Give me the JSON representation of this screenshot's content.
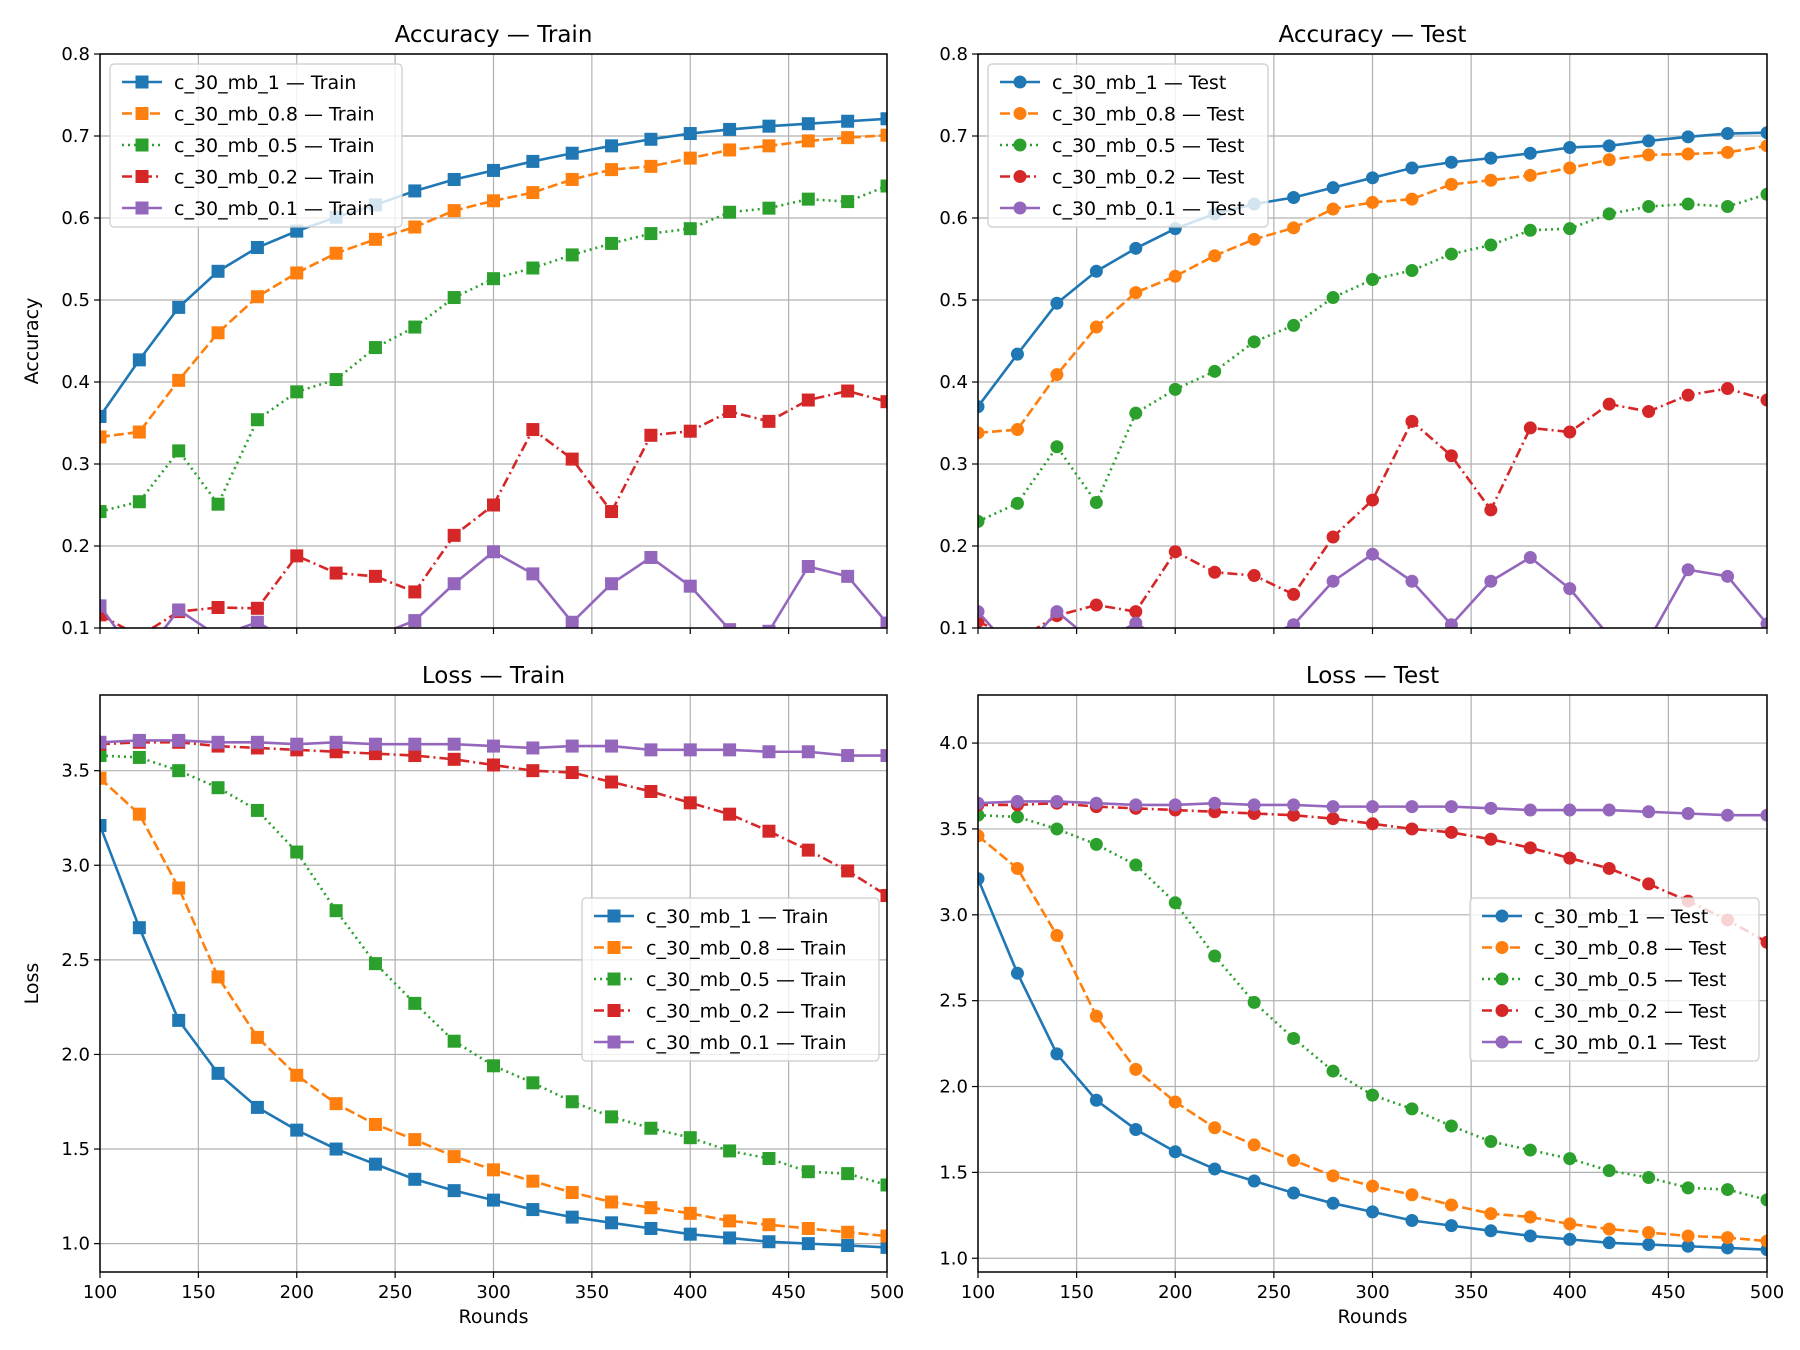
{
  "figure": {
    "background": "#ffffff"
  },
  "chart_data": [
    {
      "id": "acc-train",
      "type": "line",
      "title": "Accuracy — Train",
      "xlabel": "",
      "ylabel": "Accuracy",
      "xlim": [
        100,
        500
      ],
      "ylim": [
        0.1,
        0.8
      ],
      "xticks": [
        100,
        150,
        200,
        250,
        300,
        350,
        400,
        450,
        500
      ],
      "yticks": [
        0.1,
        0.2,
        0.3,
        0.4,
        0.5,
        0.6,
        0.7,
        0.8
      ],
      "ytick_labels": [
        "0.1",
        "0.2",
        "0.3",
        "0.4",
        "0.5",
        "0.6",
        "0.7",
        "0.8"
      ],
      "show_xtick_labels": false,
      "grid": true,
      "legend": "upper-left",
      "marker": "square",
      "x": [
        100,
        120,
        140,
        160,
        180,
        200,
        220,
        240,
        260,
        280,
        300,
        320,
        340,
        360,
        380,
        400,
        420,
        440,
        460,
        480,
        500
      ],
      "series": [
        {
          "name": "c_30_mb_1 — Train",
          "color": "#1f77b4",
          "dash": "solid",
          "values": [
            0.358,
            0.427,
            0.491,
            0.535,
            0.564,
            0.584,
            0.601,
            0.616,
            0.633,
            0.647,
            0.658,
            0.669,
            0.679,
            0.688,
            0.696,
            0.703,
            0.708,
            0.712,
            0.715,
            0.718,
            0.721
          ]
        },
        {
          "name": "c_30_mb_0.8 — Train",
          "color": "#ff7f0e",
          "dash": "dashed",
          "values": [
            0.333,
            0.339,
            0.402,
            0.46,
            0.504,
            0.533,
            0.557,
            0.574,
            0.589,
            0.609,
            0.621,
            0.631,
            0.647,
            0.659,
            0.663,
            0.673,
            0.683,
            0.688,
            0.694,
            0.698,
            0.701
          ]
        },
        {
          "name": "c_30_mb_0.5 — Train",
          "color": "#2ca02c",
          "dash": "dotted",
          "values": [
            0.242,
            0.254,
            0.316,
            0.251,
            0.354,
            0.388,
            0.403,
            0.442,
            0.467,
            0.503,
            0.526,
            0.539,
            0.555,
            0.569,
            0.581,
            0.587,
            0.607,
            0.612,
            0.623,
            0.62,
            0.639
          ]
        },
        {
          "name": "c_30_mb_0.2 — Train",
          "color": "#d62728",
          "dash": "dashdot",
          "values": [
            0.116,
            0.09,
            0.12,
            0.125,
            0.124,
            0.188,
            0.167,
            0.163,
            0.144,
            0.213,
            0.25,
            0.342,
            0.306,
            0.242,
            0.335,
            0.34,
            0.364,
            0.352,
            0.378,
            0.389,
            0.376
          ]
        },
        {
          "name": "c_30_mb_0.1 — Train",
          "color": "#9467bd",
          "dash": "solid",
          "values": [
            0.127,
            0.06,
            0.122,
            0.09,
            0.107,
            0.08,
            0.085,
            0.09,
            0.109,
            0.154,
            0.193,
            0.166,
            0.107,
            0.154,
            0.186,
            0.151,
            0.098,
            0.096,
            0.175,
            0.163,
            0.106
          ]
        }
      ]
    },
    {
      "id": "acc-test",
      "type": "line",
      "title": "Accuracy — Test",
      "xlabel": "",
      "ylabel": "",
      "xlim": [
        100,
        500
      ],
      "ylim": [
        0.1,
        0.8
      ],
      "xticks": [
        100,
        150,
        200,
        250,
        300,
        350,
        400,
        450,
        500
      ],
      "yticks": [
        0.1,
        0.2,
        0.3,
        0.4,
        0.5,
        0.6,
        0.7,
        0.8
      ],
      "ytick_labels": [
        "0.1",
        "0.2",
        "0.3",
        "0.4",
        "0.5",
        "0.6",
        "0.7",
        "0.8"
      ],
      "show_xtick_labels": false,
      "grid": true,
      "legend": "upper-left",
      "marker": "circle",
      "x": [
        100,
        120,
        140,
        160,
        180,
        200,
        220,
        240,
        260,
        280,
        300,
        320,
        340,
        360,
        380,
        400,
        420,
        440,
        460,
        480,
        500
      ],
      "series": [
        {
          "name": "c_30_mb_1 — Test",
          "color": "#1f77b4",
          "dash": "solid",
          "values": [
            0.37,
            0.434,
            0.496,
            0.535,
            0.563,
            0.587,
            0.605,
            0.617,
            0.625,
            0.637,
            0.649,
            0.661,
            0.668,
            0.673,
            0.679,
            0.686,
            0.688,
            0.694,
            0.699,
            0.703,
            0.704
          ]
        },
        {
          "name": "c_30_mb_0.8 — Test",
          "color": "#ff7f0e",
          "dash": "dashed",
          "values": [
            0.338,
            0.342,
            0.409,
            0.467,
            0.509,
            0.529,
            0.554,
            0.574,
            0.588,
            0.611,
            0.619,
            0.623,
            0.641,
            0.646,
            0.652,
            0.661,
            0.671,
            0.677,
            0.678,
            0.68,
            0.688
          ]
        },
        {
          "name": "c_30_mb_0.5 — Test",
          "color": "#2ca02c",
          "dash": "dotted",
          "values": [
            0.23,
            0.252,
            0.321,
            0.253,
            0.362,
            0.391,
            0.413,
            0.449,
            0.469,
            0.503,
            0.525,
            0.536,
            0.556,
            0.567,
            0.585,
            0.587,
            0.605,
            0.614,
            0.617,
            0.614,
            0.629
          ]
        },
        {
          "name": "c_30_mb_0.2 — Test",
          "color": "#d62728",
          "dash": "dashdot",
          "values": [
            0.108,
            0.085,
            0.115,
            0.128,
            0.12,
            0.193,
            0.168,
            0.164,
            0.141,
            0.211,
            0.256,
            0.352,
            0.31,
            0.244,
            0.344,
            0.339,
            0.373,
            0.364,
            0.384,
            0.392,
            0.378
          ]
        },
        {
          "name": "c_30_mb_0.1 — Test",
          "color": "#9467bd",
          "dash": "solid",
          "values": [
            0.12,
            0.065,
            0.12,
            0.08,
            0.106,
            0.075,
            0.08,
            0.085,
            0.104,
            0.157,
            0.19,
            0.157,
            0.104,
            0.157,
            0.186,
            0.148,
            0.09,
            0.085,
            0.171,
            0.163,
            0.105
          ]
        }
      ]
    },
    {
      "id": "loss-train",
      "type": "line",
      "title": "Loss — Train",
      "xlabel": "Rounds",
      "ylabel": "Loss",
      "xlim": [
        100,
        500
      ],
      "ylim": [
        0.85,
        3.9
      ],
      "xticks": [
        100,
        150,
        200,
        250,
        300,
        350,
        400,
        450,
        500
      ],
      "yticks": [
        1.0,
        1.5,
        2.0,
        2.5,
        3.0,
        3.5
      ],
      "ytick_labels": [
        "1.0",
        "1.5",
        "2.0",
        "2.5",
        "3.0",
        "3.5"
      ],
      "show_xtick_labels": true,
      "grid": true,
      "legend": "center-right",
      "marker": "square",
      "x": [
        100,
        120,
        140,
        160,
        180,
        200,
        220,
        240,
        260,
        280,
        300,
        320,
        340,
        360,
        380,
        400,
        420,
        440,
        460,
        480,
        500
      ],
      "series": [
        {
          "name": "c_30_mb_1 — Train",
          "color": "#1f77b4",
          "dash": "solid",
          "values": [
            3.21,
            2.67,
            2.18,
            1.9,
            1.72,
            1.6,
            1.5,
            1.42,
            1.34,
            1.28,
            1.23,
            1.18,
            1.14,
            1.11,
            1.08,
            1.05,
            1.03,
            1.01,
            1.0,
            0.99,
            0.98
          ]
        },
        {
          "name": "c_30_mb_0.8 — Train",
          "color": "#ff7f0e",
          "dash": "dashed",
          "values": [
            3.46,
            3.27,
            2.88,
            2.41,
            2.09,
            1.89,
            1.74,
            1.63,
            1.55,
            1.46,
            1.39,
            1.33,
            1.27,
            1.22,
            1.19,
            1.16,
            1.12,
            1.1,
            1.08,
            1.06,
            1.04
          ]
        },
        {
          "name": "c_30_mb_0.5 — Train",
          "color": "#2ca02c",
          "dash": "dotted",
          "values": [
            3.58,
            3.57,
            3.5,
            3.41,
            3.29,
            3.07,
            2.76,
            2.48,
            2.27,
            2.07,
            1.94,
            1.85,
            1.75,
            1.67,
            1.61,
            1.56,
            1.49,
            1.45,
            1.38,
            1.37,
            1.31
          ]
        },
        {
          "name": "c_30_mb_0.2 — Train",
          "color": "#d62728",
          "dash": "dashdot",
          "values": [
            3.64,
            3.65,
            3.65,
            3.63,
            3.62,
            3.61,
            3.6,
            3.59,
            3.58,
            3.56,
            3.53,
            3.5,
            3.49,
            3.44,
            3.39,
            3.33,
            3.27,
            3.18,
            3.08,
            2.97,
            2.84
          ]
        },
        {
          "name": "c_30_mb_0.1 — Train",
          "color": "#9467bd",
          "dash": "solid",
          "values": [
            3.65,
            3.66,
            3.66,
            3.65,
            3.65,
            3.64,
            3.65,
            3.64,
            3.64,
            3.64,
            3.63,
            3.62,
            3.63,
            3.63,
            3.61,
            3.61,
            3.61,
            3.6,
            3.6,
            3.58,
            3.58
          ]
        }
      ]
    },
    {
      "id": "loss-test",
      "type": "line",
      "title": "Loss — Test",
      "xlabel": "Rounds",
      "ylabel": "",
      "xlim": [
        100,
        500
      ],
      "ylim": [
        0.92,
        4.28
      ],
      "xticks": [
        100,
        150,
        200,
        250,
        300,
        350,
        400,
        450,
        500
      ],
      "yticks": [
        1.0,
        1.5,
        2.0,
        2.5,
        3.0,
        3.5,
        4.0
      ],
      "ytick_labels": [
        "1.0",
        "1.5",
        "2.0",
        "2.5",
        "3.0",
        "3.5",
        "4.0"
      ],
      "show_xtick_labels": true,
      "grid": true,
      "legend": "center-right",
      "marker": "circle",
      "x": [
        100,
        120,
        140,
        160,
        180,
        200,
        220,
        240,
        260,
        280,
        300,
        320,
        340,
        360,
        380,
        400,
        420,
        440,
        460,
        480,
        500
      ],
      "series": [
        {
          "name": "c_30_mb_1 — Test",
          "color": "#1f77b4",
          "dash": "solid",
          "values": [
            3.21,
            2.66,
            2.19,
            1.92,
            1.75,
            1.62,
            1.52,
            1.45,
            1.38,
            1.32,
            1.27,
            1.22,
            1.19,
            1.16,
            1.13,
            1.11,
            1.09,
            1.08,
            1.07,
            1.06,
            1.05
          ]
        },
        {
          "name": "c_30_mb_0.8 — Test",
          "color": "#ff7f0e",
          "dash": "dashed",
          "values": [
            3.46,
            3.27,
            2.88,
            2.41,
            2.1,
            1.91,
            1.76,
            1.66,
            1.57,
            1.48,
            1.42,
            1.37,
            1.31,
            1.26,
            1.24,
            1.2,
            1.17,
            1.15,
            1.13,
            1.12,
            1.1
          ]
        },
        {
          "name": "c_30_mb_0.5 — Test",
          "color": "#2ca02c",
          "dash": "dotted",
          "values": [
            3.58,
            3.57,
            3.5,
            3.41,
            3.29,
            3.07,
            2.76,
            2.49,
            2.28,
            2.09,
            1.95,
            1.87,
            1.77,
            1.68,
            1.63,
            1.58,
            1.51,
            1.47,
            1.41,
            1.4,
            1.34
          ]
        },
        {
          "name": "c_30_mb_0.2 — Test",
          "color": "#d62728",
          "dash": "dashdot",
          "values": [
            3.64,
            3.64,
            3.65,
            3.63,
            3.62,
            3.61,
            3.6,
            3.59,
            3.58,
            3.56,
            3.53,
            3.5,
            3.48,
            3.44,
            3.39,
            3.33,
            3.27,
            3.18,
            3.08,
            2.97,
            2.84
          ]
        },
        {
          "name": "c_30_mb_0.1 — Test",
          "color": "#9467bd",
          "dash": "solid",
          "values": [
            3.65,
            3.66,
            3.66,
            3.65,
            3.64,
            3.64,
            3.65,
            3.64,
            3.64,
            3.63,
            3.63,
            3.63,
            3.63,
            3.62,
            3.61,
            3.61,
            3.61,
            3.6,
            3.59,
            3.58,
            3.58
          ]
        }
      ]
    }
  ]
}
